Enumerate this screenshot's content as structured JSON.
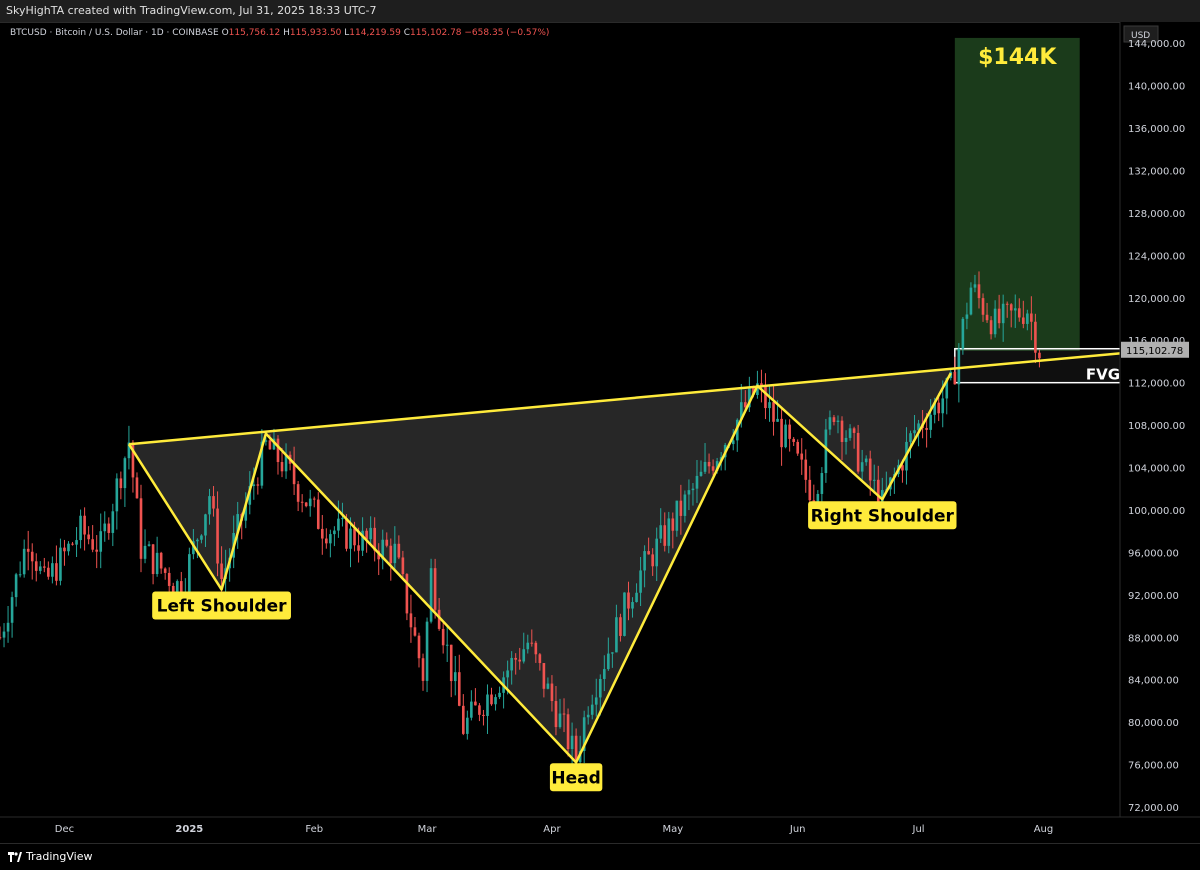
{
  "header": {
    "attribution": "SkyHighTA created with TradingView.com, Jul 31, 2025 18:33 UTC-7"
  },
  "legend": {
    "symbol": "BTCUSD · Bitcoin / U.S. Dollar · 1D · COINBASE",
    "o_label": "O",
    "o_value": "115,756.12",
    "h_label": "H",
    "h_value": "115,933.50",
    "l_label": "L",
    "l_value": "114,219.59",
    "c_label": "C",
    "c_value": "115,102.78",
    "change": "−658.35 (−0.57%)"
  },
  "currency": "USD",
  "footer": {
    "brand": "TradingView"
  },
  "colors": {
    "up": "#26a69a",
    "down": "#ef5350",
    "pattern_line": "#ffeb3b",
    "target_box": "#1b3b1b",
    "target_text": "#ffeb3b",
    "label_bg": "#ffeb3b",
    "fill": "#2e2e2e",
    "price_tag": "#b0b0b0"
  },
  "chart_data": {
    "type": "candlestick",
    "title": "",
    "xlabel": "",
    "ylabel": "",
    "ylim": [
      72000,
      146000
    ],
    "x_range": [
      "2024-11-15",
      "2025-08-20"
    ],
    "x_ticks": [
      {
        "date": "2024-12-01",
        "label": "Dec"
      },
      {
        "date": "2025-01-01",
        "label": "2025"
      },
      {
        "date": "2025-02-01",
        "label": "Feb"
      },
      {
        "date": "2025-03-01",
        "label": "Mar"
      },
      {
        "date": "2025-04-01",
        "label": "Apr"
      },
      {
        "date": "2025-05-01",
        "label": "May"
      },
      {
        "date": "2025-06-01",
        "label": "Jun"
      },
      {
        "date": "2025-07-01",
        "label": "Jul"
      },
      {
        "date": "2025-08-01",
        "label": "Aug"
      }
    ],
    "y_ticks": [
      {
        "value": 144000,
        "label": "144,000.00"
      },
      {
        "value": 140000,
        "label": "140,000.00"
      },
      {
        "value": 136000,
        "label": "136,000.00"
      },
      {
        "value": 132000,
        "label": "132,000.00"
      },
      {
        "value": 128000,
        "label": "128,000.00"
      },
      {
        "value": 124000,
        "label": "124,000.00"
      },
      {
        "value": 120000,
        "label": "120,000.00"
      },
      {
        "value": 116000,
        "label": "116,000.00"
      },
      {
        "value": 112000,
        "label": "112,000.00"
      },
      {
        "value": 108000,
        "label": "108,000.00"
      },
      {
        "value": 104000,
        "label": "104,000.00"
      },
      {
        "value": 100000,
        "label": "100,000.00"
      },
      {
        "value": 96000,
        "label": "96,000.00"
      },
      {
        "value": 92000,
        "label": "92,000.00"
      },
      {
        "value": 88000,
        "label": "88,000.00"
      },
      {
        "value": 84000,
        "label": "84,000.00"
      },
      {
        "value": 80000,
        "label": "80,000.00"
      },
      {
        "value": 76000,
        "label": "76,000.00"
      },
      {
        "value": 72000,
        "label": "72,000.00"
      }
    ],
    "last_price": {
      "value": 115102.78,
      "label": "115,102.78"
    },
    "price_anchors": [
      [
        "2024-11-15",
        88000
      ],
      [
        "2024-11-22",
        97500
      ],
      [
        "2024-11-26",
        93000
      ],
      [
        "2024-12-05",
        98000
      ],
      [
        "2024-12-10",
        96500
      ],
      [
        "2024-12-17",
        106500
      ],
      [
        "2024-12-20",
        96500
      ],
      [
        "2024-12-30",
        92500
      ],
      [
        "2025-01-06",
        101500
      ],
      [
        "2025-01-09",
        93500
      ],
      [
        "2025-01-20",
        106000
      ],
      [
        "2025-01-24",
        104500
      ],
      [
        "2025-02-03",
        98500
      ],
      [
        "2025-02-21",
        96000
      ],
      [
        "2025-02-28",
        84500
      ],
      [
        "2025-03-02",
        94000
      ],
      [
        "2025-03-10",
        79500
      ],
      [
        "2025-03-26",
        87500
      ],
      [
        "2025-04-07",
        76500
      ],
      [
        "2025-04-10",
        82000
      ],
      [
        "2025-04-22",
        93500
      ],
      [
        "2025-05-08",
        103000
      ],
      [
        "2025-05-22",
        111500
      ],
      [
        "2025-06-05",
        101500
      ],
      [
        "2025-06-10",
        109500
      ],
      [
        "2025-06-22",
        100500
      ],
      [
        "2025-06-30",
        107500
      ],
      [
        "2025-07-09",
        111500
      ],
      [
        "2025-07-14",
        121000
      ],
      [
        "2025-07-20",
        117500
      ],
      [
        "2025-07-28",
        119000
      ],
      [
        "2025-07-31",
        115100
      ]
    ],
    "neckline": [
      {
        "date": "2024-12-17",
        "value": 106200
      },
      {
        "date": "2025-08-21",
        "value": 114800
      }
    ],
    "pattern_points": [
      {
        "date": "2024-12-17",
        "value": 106200
      },
      {
        "date": "2025-01-09",
        "value": 92500
      },
      {
        "date": "2025-01-20",
        "value": 107200
      },
      {
        "date": "2025-04-07",
        "value": 76200
      },
      {
        "date": "2025-05-22",
        "value": 111700
      },
      {
        "date": "2025-06-22",
        "value": 101000
      },
      {
        "date": "2025-07-09",
        "value": 112900
      }
    ],
    "target_zone": {
      "date_start": "2025-07-10",
      "date_end": "2025-08-10",
      "value_low": 115000,
      "value_high": 144500,
      "label": "$144K"
    },
    "fvg_zone": {
      "date_start": "2025-07-10",
      "date_end": "2025-08-21",
      "value_low": 112000,
      "value_high": 115200,
      "label": "FVG"
    },
    "annotations": [
      {
        "text": "Left Shoulder",
        "date": "2025-01-09",
        "value": 91000
      },
      {
        "text": "Head",
        "date": "2025-04-07",
        "value": 74800
      },
      {
        "text": "Right Shoulder",
        "date": "2025-06-22",
        "value": 99500
      }
    ]
  }
}
